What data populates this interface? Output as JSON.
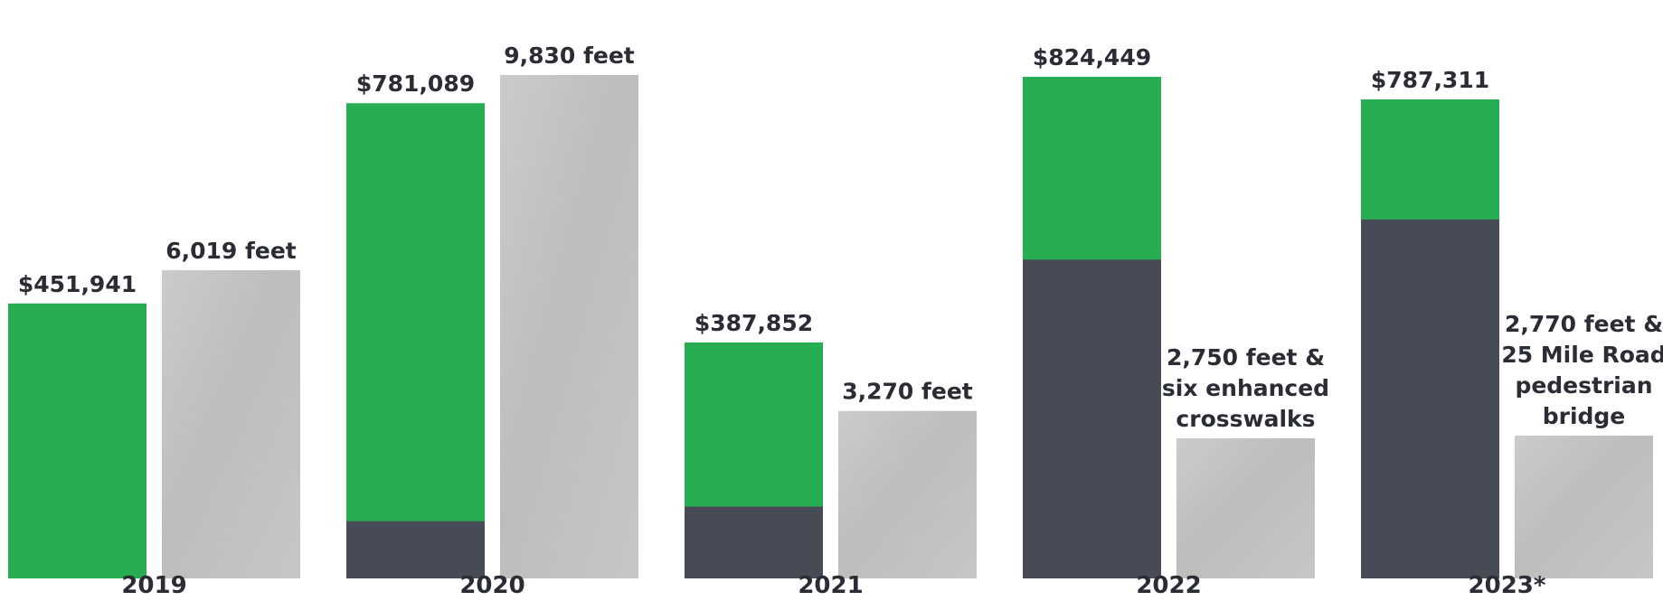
{
  "colors": {
    "total": "#27ae52",
    "grant": "#474b55",
    "sidewalk": "#c4c4c4",
    "text": "#2a2d33"
  },
  "chart_data": {
    "type": "bar",
    "title": "",
    "xlabel": "",
    "ylabel": "",
    "categories": [
      "2019",
      "2020",
      "2021",
      "2022",
      "2023*"
    ],
    "series": [
      {
        "values": [
          451941,
          781089,
          387852,
          824449,
          787311
        ],
        "labels": [
          "$451,941",
          "$781,089",
          "$387,852",
          "$824,449",
          "$787,311"
        ]
      },
      {
        "values": [
          0,
          94000,
          118000,
          524000,
          590000
        ]
      },
      {
        "values": [
          6019,
          9830,
          3270,
          2750,
          2770
        ],
        "labels": [
          [
            "6,019  feet"
          ],
          [
            "9,830 feet"
          ],
          [
            "3,270 feet"
          ],
          [
            "2,750 feet &",
            "six enhanced",
            "crosswalks"
          ],
          [
            "2,770 feet &",
            "25 Mile Road",
            "pedestrian",
            "bridge"
          ]
        ]
      }
    ]
  }
}
